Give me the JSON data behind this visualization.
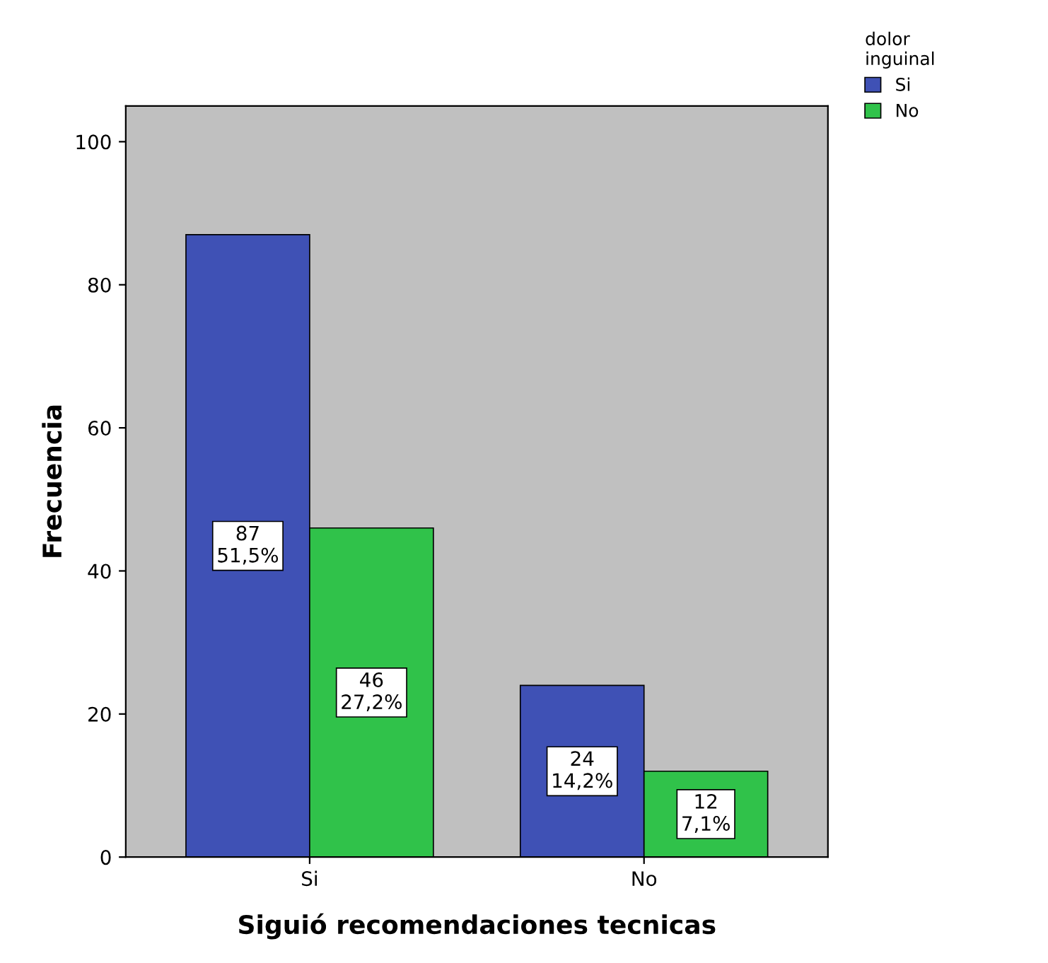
{
  "chart_data": {
    "type": "bar",
    "xlabel": "Siguió recomendaciones tecnicas",
    "ylabel": "Frecuencia",
    "legend_title": "dolor\ninguinal",
    "categories": [
      "Si",
      "No"
    ],
    "series": [
      {
        "name": "Si",
        "color": "#3f51b5",
        "values": [
          87,
          24
        ],
        "value_labels": [
          "87\n51,5%",
          "24\n14,2%"
        ]
      },
      {
        "name": "No",
        "color": "#30c24a",
        "values": [
          46,
          12
        ],
        "value_labels": [
          "46\n27,2%",
          "12\n7,1%"
        ]
      }
    ],
    "ylim": [
      0,
      105
    ],
    "yticks": [
      0,
      20,
      40,
      60,
      80,
      100
    ],
    "grid": false,
    "legend": "top right"
  }
}
